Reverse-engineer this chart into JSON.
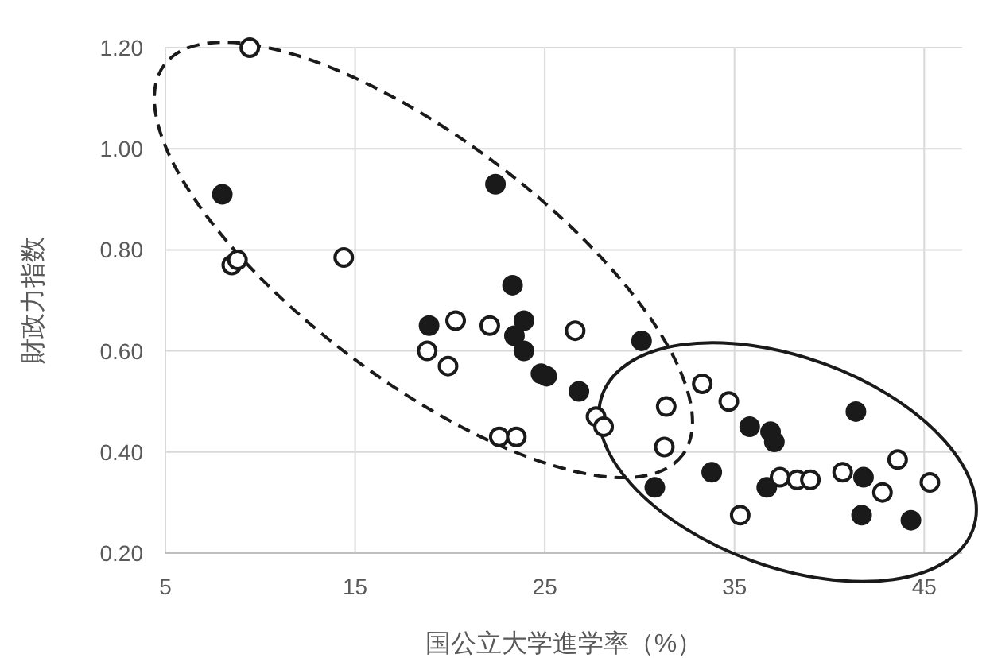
{
  "chart_data": {
    "type": "scatter",
    "xlabel": "国公立大学進学率（%）",
    "ylabel": "財政力指数",
    "xlim": [
      5,
      47
    ],
    "xticks": [
      5,
      15,
      25,
      35,
      45
    ],
    "ylim": [
      0.2,
      1.2
    ],
    "yticks": [
      {
        "value": 0.2,
        "label": "0.20"
      },
      {
        "value": 0.4,
        "label": "0.40"
      },
      {
        "value": 0.6,
        "label": "0.60"
      },
      {
        "value": 0.8,
        "label": "0.80"
      },
      {
        "value": 1.0,
        "label": "1.00"
      },
      {
        "value": 1.2,
        "label": "1.20"
      }
    ],
    "grid": true,
    "marker": "circle",
    "series": [
      {
        "color": "#1a1a1a",
        "x": [
          8.0,
          22.4,
          23.3,
          18.9,
          23.9,
          23.4,
          23.9,
          24.8,
          25.1,
          26.8,
          30.1,
          30.8,
          35.8,
          36.9,
          37.1,
          41.4,
          41.8,
          36.7,
          33.8,
          41.7,
          44.3
        ],
        "values": [
          0.91,
          0.93,
          0.73,
          0.65,
          0.66,
          0.63,
          0.6,
          0.555,
          0.55,
          0.52,
          0.62,
          0.33,
          0.45,
          0.44,
          0.42,
          0.48,
          0.35,
          0.33,
          0.36,
          0.275,
          0.265
        ]
      },
      {
        "color": "#ffffff",
        "x": [
          9.45,
          8.5,
          8.8,
          14.4,
          20.3,
          22.1,
          26.6,
          18.8,
          19.9,
          27.7,
          28.1,
          22.6,
          23.5,
          31.4,
          31.3,
          33.3,
          34.7,
          43.6,
          45.3,
          42.8,
          40.7,
          37.4,
          38.3,
          39.0,
          35.3
        ],
        "values": [
          1.2,
          0.77,
          0.78,
          0.785,
          0.66,
          0.65,
          0.64,
          0.6,
          0.57,
          0.47,
          0.45,
          0.43,
          0.43,
          0.49,
          0.41,
          0.535,
          0.5,
          0.385,
          0.34,
          0.32,
          0.36,
          0.35,
          0.345,
          0.345,
          0.275
        ]
      }
    ]
  }
}
